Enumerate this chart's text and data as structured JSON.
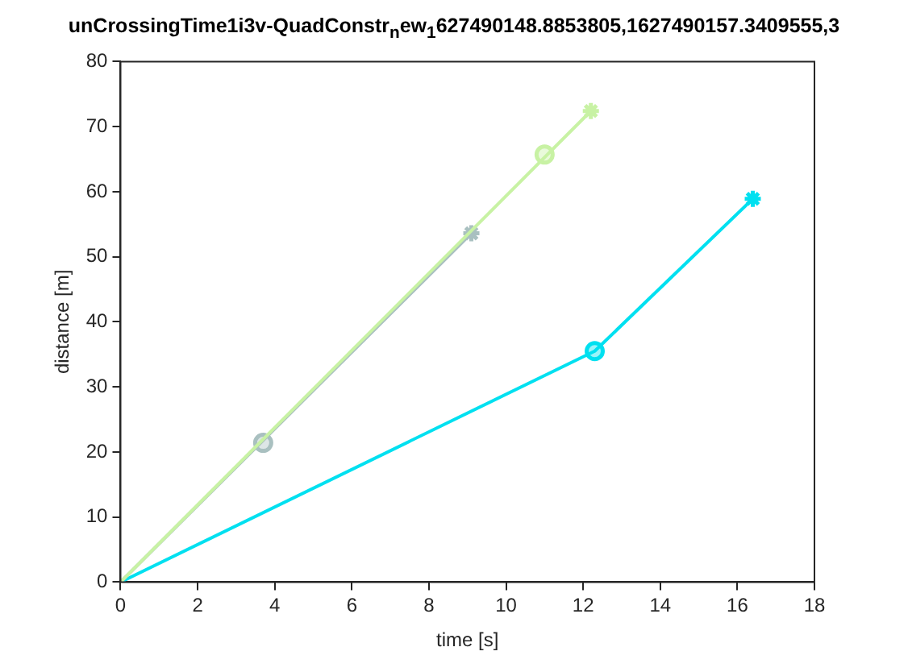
{
  "chart_data": {
    "type": "line",
    "title": "unCrossingTime1i3v-QuadConstr$_{n}$ew$_{1}$627490148.8853805,1627490157.3409555,3",
    "xlabel": "time [s]",
    "ylabel": "distance [m]",
    "xlim": [
      0,
      18
    ],
    "xticks": [
      0,
      2,
      4,
      6,
      8,
      10,
      12,
      14,
      16,
      18
    ],
    "ylim": [
      0,
      80
    ],
    "yticks": [
      0,
      10,
      20,
      30,
      40,
      50,
      60,
      70,
      80
    ],
    "grid": false,
    "legend": false,
    "line_style": "solid",
    "series": [
      {
        "type": "line",
        "color": "#c8f2a4",
        "x": [
          0,
          12.2
        ],
        "values": [
          0,
          72.4
        ],
        "marker": "none"
      },
      {
        "type": "line",
        "color": "#a9c0c0",
        "x": [
          0,
          9.1
        ],
        "values": [
          0,
          53.6
        ],
        "marker": "none"
      },
      {
        "type": "line",
        "color": "#00e0f0",
        "x": [
          0,
          12.3,
          16.4
        ],
        "values": [
          0,
          35.5,
          58.9
        ],
        "marker": "none"
      },
      {
        "type": "scatter",
        "color": "#c8f2a4",
        "x": [
          11.0
        ],
        "values": [
          65.7
        ],
        "marker": "circle"
      },
      {
        "type": "scatter",
        "color": "#c8f2a4",
        "x": [
          12.2
        ],
        "values": [
          72.4
        ],
        "marker": "cross"
      },
      {
        "type": "scatter",
        "color": "#a9c0c0",
        "x": [
          3.7
        ],
        "values": [
          21.4
        ],
        "marker": "circle"
      },
      {
        "type": "scatter",
        "color": "#a9c0c0",
        "x": [
          9.1
        ],
        "values": [
          53.6
        ],
        "marker": "cross"
      },
      {
        "type": "scatter",
        "color": "#00e0f0",
        "x": [
          12.3
        ],
        "values": [
          35.5
        ],
        "marker": "circle"
      },
      {
        "type": "scatter",
        "color": "#00e0f0",
        "x": [
          16.4
        ],
        "values": [
          58.9
        ],
        "marker": "cross"
      }
    ]
  }
}
